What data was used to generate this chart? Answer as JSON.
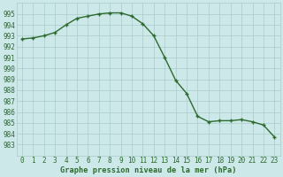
{
  "x": [
    0,
    1,
    2,
    3,
    4,
    5,
    6,
    7,
    8,
    9,
    10,
    11,
    12,
    13,
    14,
    15,
    16,
    17,
    18,
    19,
    20,
    21,
    22,
    23
  ],
  "y": [
    992.7,
    992.8,
    993.0,
    993.3,
    994.0,
    994.6,
    994.8,
    995.0,
    995.1,
    995.1,
    994.8,
    994.1,
    993.0,
    991.0,
    988.9,
    987.7,
    985.6,
    985.1,
    985.2,
    985.2,
    985.3,
    985.1,
    984.8,
    983.7
  ],
  "line_color": "#2d6a2d",
  "bg_color": "#cce8e8",
  "grid_color": "#aacccc",
  "xlabel": "Graphe pression niveau de la mer (hPa)",
  "ylim_min": 982,
  "ylim_max": 996,
  "yticks": [
    983,
    984,
    985,
    986,
    987,
    988,
    989,
    990,
    991,
    992,
    993,
    994,
    995
  ],
  "xticks": [
    0,
    1,
    2,
    3,
    4,
    5,
    6,
    7,
    8,
    9,
    10,
    11,
    12,
    13,
    14,
    15,
    16,
    17,
    18,
    19,
    20,
    21,
    22,
    23
  ],
  "marker": "+",
  "markersize": 3.5,
  "linewidth": 1.0,
  "title_fontsize": 6.0,
  "tick_fontsize": 5.5,
  "xlabel_fontsize": 6.2
}
